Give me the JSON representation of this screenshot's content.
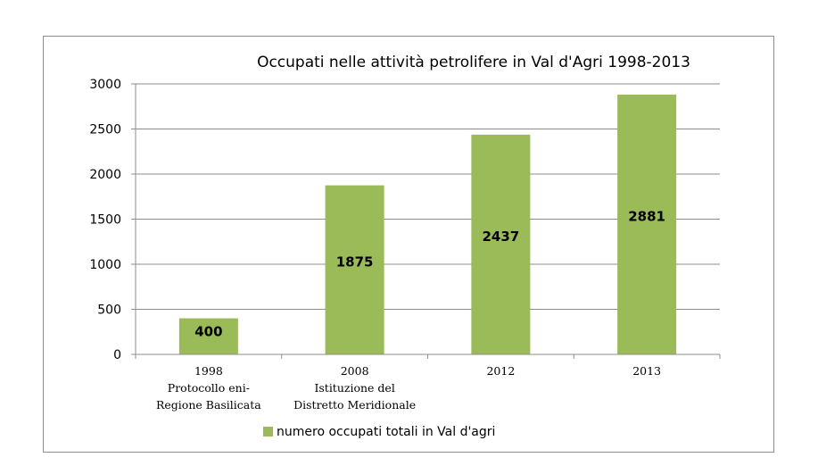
{
  "chart_data": {
    "type": "bar",
    "title": "Occupati nelle attività petrolifere in Val d'Agri  1998-2013",
    "categories": [
      [
        "1998",
        "Protocollo eni-",
        "Regione Basilicata"
      ],
      [
        "2008",
        "Istituzione del",
        "Distretto Meridionale"
      ],
      [
        "2012"
      ],
      [
        "2013"
      ]
    ],
    "series": [
      {
        "name": "numero occupati totali in Val d'agri",
        "values": [
          400,
          1875,
          2437,
          2881
        ],
        "data_labels": [
          "400",
          "1875",
          "2437",
          "2881"
        ]
      }
    ],
    "ylim": [
      0,
      3000
    ],
    "yticks": [
      0,
      500,
      1000,
      1500,
      2000,
      2500,
      3000
    ],
    "grid": true,
    "legend_position": "bottom",
    "colors": {
      "bar": "#9bbb59",
      "grid": "#8c8c8c",
      "axis": "#8c8c8c"
    }
  }
}
